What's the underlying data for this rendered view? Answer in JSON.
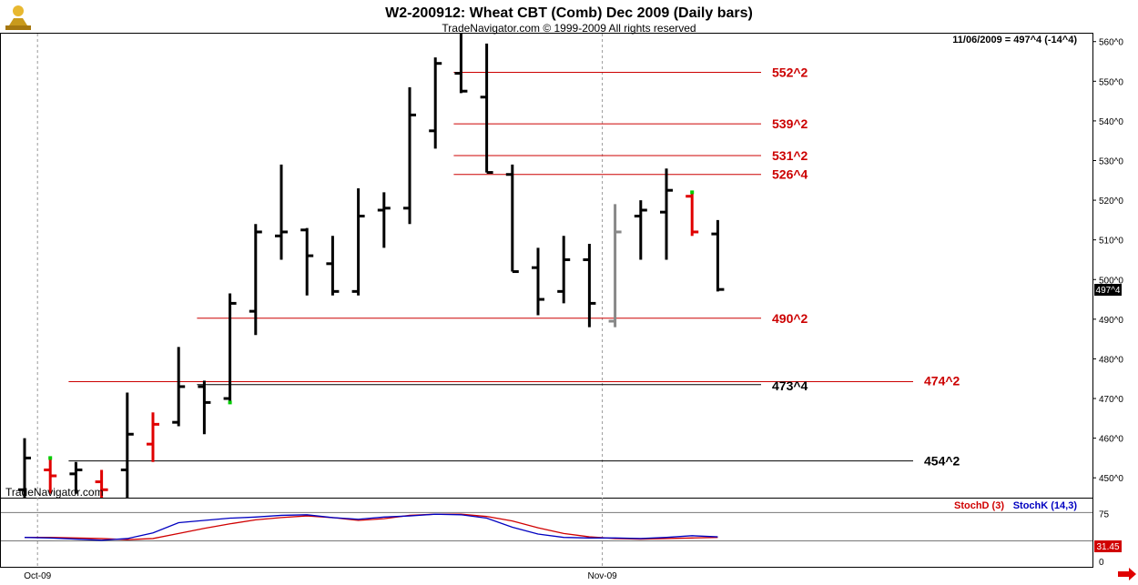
{
  "chart_data": {
    "type": "bar",
    "title": "W2-200912:  Wheat CBT (Comb) Dec 2009  (Daily bars)",
    "subtitle": "TradeNavigator.com © 1999-2009 All rights reserved",
    "watermark": "TradeNavigator.com",
    "status_text": "11/06/2009 = 497^4 (-14^4)",
    "last_price_label": "497^4",
    "y_ticks": [
      "450^0",
      "460^0",
      "470^0",
      "480^0",
      "490^0",
      "500^0",
      "510^0",
      "520^0",
      "530^0",
      "540^0",
      "550^0",
      "560^0"
    ],
    "y_tick_values": [
      450,
      460,
      470,
      480,
      490,
      500,
      510,
      520,
      530,
      540,
      550,
      560
    ],
    "ylim": [
      445,
      562
    ],
    "x_labels": [
      {
        "text": "Oct-09",
        "bar_index": 1
      },
      {
        "text": "Nov-09",
        "bar_index": 23
      }
    ],
    "colors": {
      "up": "#000000",
      "down_red": "#e00000",
      "gray": "#888888",
      "tick_green": "#00cc00",
      "stoch_d": "#d00000",
      "stoch_k": "#0000c0"
    },
    "bars": [
      {
        "high": 460,
        "low": 445,
        "open": 447,
        "close": 455,
        "color": "black"
      },
      {
        "high": 455,
        "low": 446,
        "open": 452,
        "close": 450.5,
        "color": "red",
        "top_tick": "green"
      },
      {
        "high": 454,
        "low": 446,
        "open": 451,
        "close": 452,
        "color": "black"
      },
      {
        "high": 452,
        "low": 445,
        "open": 449,
        "close": 447,
        "color": "red"
      },
      {
        "high": 471.5,
        "low": 445,
        "open": 452,
        "close": 461,
        "color": "black"
      },
      {
        "high": 466.5,
        "low": 454,
        "open": 458.5,
        "close": 463.5,
        "color": "red"
      },
      {
        "high": 483,
        "low": 463,
        "open": 464,
        "close": 473,
        "color": "black"
      },
      {
        "high": 474.5,
        "low": 461,
        "open": 473,
        "close": 469,
        "color": "black"
      },
      {
        "high": 496.5,
        "low": 469,
        "open": 470,
        "close": 494,
        "color": "black",
        "bottom_tick": "green"
      },
      {
        "high": 514,
        "low": 486,
        "open": 492,
        "close": 512,
        "color": "black"
      },
      {
        "high": 529,
        "low": 505,
        "open": 511,
        "close": 512,
        "color": "black"
      },
      {
        "high": 513,
        "low": 496,
        "open": 512.5,
        "close": 506,
        "color": "black"
      },
      {
        "high": 511,
        "low": 496,
        "open": 504,
        "close": 497,
        "color": "black"
      },
      {
        "high": 523,
        "low": 496,
        "open": 497,
        "close": 516,
        "color": "black"
      },
      {
        "high": 522,
        "low": 508,
        "open": 517.5,
        "close": 518,
        "color": "black"
      },
      {
        "high": 548.5,
        "low": 514,
        "open": 518,
        "close": 541.5,
        "color": "black"
      },
      {
        "high": 556,
        "low": 533,
        "open": 537.5,
        "close": 554.5,
        "color": "black"
      },
      {
        "high": 562,
        "low": 547,
        "open": 552,
        "close": 547.5,
        "color": "black"
      },
      {
        "high": 559.5,
        "low": 527,
        "open": 546,
        "close": 527,
        "color": "black"
      },
      {
        "high": 529,
        "low": 502,
        "open": 526.5,
        "close": 502,
        "color": "black"
      },
      {
        "high": 508,
        "low": 491,
        "open": 503,
        "close": 495,
        "color": "black"
      },
      {
        "high": 511,
        "low": 494,
        "open": 497,
        "close": 505,
        "color": "black"
      },
      {
        "high": 509,
        "low": 488,
        "open": 505,
        "close": 494,
        "color": "black"
      },
      {
        "high": 519,
        "low": 488,
        "open": 489.5,
        "close": 512,
        "color": "gray"
      },
      {
        "high": 520,
        "low": 505,
        "open": 516,
        "close": 517.5,
        "color": "black"
      },
      {
        "high": 528,
        "low": 505,
        "open": 517,
        "close": 522.5,
        "color": "black"
      },
      {
        "high": 522,
        "low": 511,
        "open": 521,
        "close": 512,
        "color": "red",
        "top_tick": "green"
      },
      {
        "high": 515,
        "low": 497,
        "open": 511.5,
        "close": 497.5,
        "color": "black"
      }
    ],
    "levels": [
      {
        "label": "552^2",
        "value": 552.25,
        "color": "#cc0000",
        "from_bar": 17
      },
      {
        "label": "539^2",
        "value": 539.25,
        "color": "#cc0000",
        "from_bar": 17
      },
      {
        "label": "531^2",
        "value": 531.25,
        "color": "#cc0000",
        "from_bar": 17
      },
      {
        "label": "526^4",
        "value": 526.5,
        "color": "#cc0000",
        "from_bar": 17
      },
      {
        "label": "490^2",
        "value": 490.25,
        "color": "#cc0000",
        "from_bar": 7
      },
      {
        "label": "474^2",
        "value": 474.25,
        "color": "#cc0000",
        "from_bar": 2,
        "extend": true
      },
      {
        "label": "473^4",
        "value": 473.5,
        "color": "#000000",
        "from_bar": 7
      },
      {
        "label": "454^2",
        "value": 454.25,
        "color": "#000000",
        "from_bar": 2,
        "extend": true
      }
    ],
    "indicator": {
      "legend": [
        "StochD (3)",
        "StochK (14,3)"
      ],
      "ticks": [
        "75",
        "0"
      ],
      "tick_values": [
        75,
        0
      ],
      "ylim": [
        0,
        100
      ],
      "last_value_label": "31.45",
      "stoch_d": [
        31,
        31,
        30,
        29,
        27,
        29,
        38,
        47,
        55,
        62,
        66,
        69,
        66,
        61,
        64,
        70,
        72,
        72,
        68,
        60,
        48,
        38,
        32,
        29,
        28,
        29,
        30,
        31
      ],
      "stoch_k": [
        31,
        30,
        28,
        26,
        29,
        39,
        57,
        61,
        65,
        67,
        70,
        71,
        66,
        63,
        67,
        69,
        72,
        71,
        65,
        49,
        37,
        31,
        30,
        30,
        29,
        31,
        34,
        32
      ]
    }
  }
}
